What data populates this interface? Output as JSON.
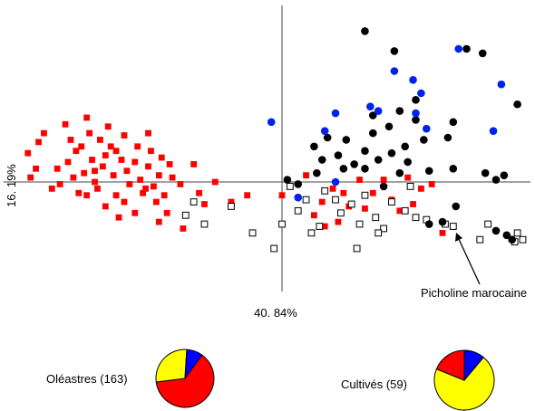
{
  "chart_data": [
    {
      "type": "scatter",
      "xlabel": "40. 84%",
      "ylabel": "16. 19%",
      "xlim": [
        -10.0,
        9.0
      ],
      "ylim": [
        -5.0,
        7.5
      ],
      "grid": false,
      "annotations": [
        {
          "text": "Picholine marocaine",
          "target": [
            6.0,
            -1.8
          ]
        }
      ],
      "series": [
        {
          "marker": "filled-square",
          "color": "#ff0000",
          "points": [
            [
              -8.9,
              2.2
            ],
            [
              -9.1,
              1.8
            ],
            [
              -9.5,
              1.3
            ],
            [
              -9.2,
              0.6
            ],
            [
              -9.4,
              0.2
            ],
            [
              -8.6,
              -0.3
            ],
            [
              -8.1,
              2.6
            ],
            [
              -7.9,
              1.9
            ],
            [
              -7.7,
              1.4
            ],
            [
              -8.0,
              0.9
            ],
            [
              -7.8,
              0.2
            ],
            [
              -8.3,
              -0.1
            ],
            [
              -7.6,
              -0.5
            ],
            [
              -7.3,
              2.9
            ],
            [
              -7.2,
              2.2
            ],
            [
              -7.5,
              1.6
            ],
            [
              -7.1,
              1.0
            ],
            [
              -7.4,
              0.4
            ],
            [
              -7.0,
              0.0
            ],
            [
              -7.3,
              -0.6
            ],
            [
              -6.8,
              1.9
            ],
            [
              -6.7,
              0.7
            ],
            [
              -6.9,
              -0.3
            ],
            [
              -6.5,
              2.5
            ],
            [
              -6.4,
              1.6
            ],
            [
              -6.6,
              1.2
            ],
            [
              -6.3,
              0.3
            ],
            [
              -6.2,
              -0.6
            ],
            [
              -6.6,
              -1.1
            ],
            [
              -5.9,
              2.1
            ],
            [
              -6.0,
              1.0
            ],
            [
              -5.8,
              0.5
            ],
            [
              -5.7,
              -0.1
            ],
            [
              -5.9,
              -0.9
            ],
            [
              -5.4,
              1.6
            ],
            [
              -5.5,
              0.9
            ],
            [
              -5.3,
              0.1
            ],
            [
              -5.2,
              -0.5
            ],
            [
              -5.5,
              -1.4
            ],
            [
              -5.0,
              2.2
            ],
            [
              -4.9,
              1.4
            ],
            [
              -5.0,
              0.7
            ],
            [
              -4.8,
              -0.2
            ],
            [
              -4.7,
              -0.9
            ],
            [
              -4.5,
              1.1
            ],
            [
              -4.6,
              0.3
            ],
            [
              -4.4,
              -0.6
            ],
            [
              -4.6,
              -1.8
            ],
            [
              -4.2,
              0.8
            ],
            [
              -4.1,
              0.2
            ],
            [
              -4.3,
              -1.4
            ],
            [
              -3.8,
              -0.1
            ],
            [
              -3.7,
              -2.1
            ],
            [
              -3.3,
              0.8
            ],
            [
              -3.1,
              -0.5
            ],
            [
              -2.9,
              -1.0
            ],
            [
              -2.5,
              0.0
            ],
            [
              -1.9,
              -0.9
            ],
            [
              -1.3,
              -0.6
            ],
            [
              0.0,
              -0.6
            ],
            [
              0.9,
              0.3
            ],
            [
              1.2,
              -1.5
            ],
            [
              1.5,
              -0.9
            ],
            [
              1.9,
              -0.3
            ],
            [
              2.1,
              -1.8
            ],
            [
              2.3,
              -0.5
            ],
            [
              2.9,
              0.1
            ],
            [
              3.1,
              -1.2
            ],
            [
              3.8,
              0.1
            ],
            [
              4.1,
              -0.8
            ],
            [
              4.4,
              -1.3
            ],
            [
              4.9,
              -1.0
            ],
            [
              5.2,
              -0.3
            ],
            [
              5.6,
              -0.1
            ],
            [
              6.0,
              -2.3
            ],
            [
              -6.1,
              -1.6
            ],
            [
              -7.0,
              0.5
            ],
            [
              -8.4,
              0.6
            ],
            [
              -6.2,
              1.4
            ],
            [
              -5.1,
              -0.3
            ],
            [
              2.5,
              -1.1
            ],
            [
              3.4,
              -0.5
            ],
            [
              1.6,
              -2.0
            ],
            [
              4.7,
              0.2
            ]
          ]
        },
        {
          "marker": "open-square",
          "color": "#000000",
          "points": [
            [
              -3.3,
              -0.9
            ],
            [
              -2.9,
              -1.9
            ],
            [
              -1.9,
              -1.1
            ],
            [
              -1.1,
              -2.3
            ],
            [
              0.0,
              -1.9
            ],
            [
              0.6,
              -1.3
            ],
            [
              0.9,
              -0.8
            ],
            [
              1.1,
              -2.3
            ],
            [
              1.6,
              -0.4
            ],
            [
              2.0,
              -0.8
            ],
            [
              2.2,
              -1.4
            ],
            [
              2.6,
              -1.0
            ],
            [
              2.9,
              -1.9
            ],
            [
              3.1,
              -0.6
            ],
            [
              3.5,
              -1.6
            ],
            [
              3.8,
              -2.1
            ],
            [
              4.1,
              -0.9
            ],
            [
              4.6,
              -1.3
            ],
            [
              5.0,
              -1.6
            ],
            [
              5.4,
              -1.7
            ],
            [
              6.1,
              -1.9
            ],
            [
              7.4,
              -2.6
            ],
            [
              8.8,
              -2.3
            ],
            [
              9.0,
              -2.6
            ],
            [
              8.7,
              -2.7
            ],
            [
              3.6,
              -2.3
            ],
            [
              4.8,
              -0.2
            ],
            [
              -0.3,
              -3.0
            ],
            [
              1.4,
              -2.0
            ],
            [
              2.8,
              -3.0
            ],
            [
              6.4,
              -2.0
            ],
            [
              7.7,
              -1.9
            ],
            [
              -3.6,
              -1.5
            ],
            [
              0.3,
              -0.2
            ]
          ]
        },
        {
          "marker": "filled-circle",
          "color": "#000000",
          "points": [
            [
              3.1,
              6.8
            ],
            [
              4.2,
              5.9
            ],
            [
              6.9,
              6.0
            ],
            [
              7.5,
              5.8
            ],
            [
              8.8,
              3.5
            ],
            [
              5.0,
              3.7
            ],
            [
              6.4,
              2.7
            ],
            [
              4.4,
              3.2
            ],
            [
              5.0,
              2.8
            ],
            [
              6.2,
              2.0
            ],
            [
              4.0,
              2.5
            ],
            [
              3.4,
              3.0
            ],
            [
              3.4,
              2.2
            ],
            [
              3.1,
              1.4
            ],
            [
              2.4,
              1.9
            ],
            [
              1.7,
              2.0
            ],
            [
              1.2,
              1.6
            ],
            [
              1.5,
              1.0
            ],
            [
              2.1,
              1.2
            ],
            [
              2.7,
              0.8
            ],
            [
              3.1,
              0.6
            ],
            [
              3.6,
              1.0
            ],
            [
              4.1,
              1.3
            ],
            [
              4.6,
              1.6
            ],
            [
              5.3,
              1.9
            ],
            [
              4.7,
              0.9
            ],
            [
              4.4,
              0.4
            ],
            [
              3.8,
              -0.2
            ],
            [
              2.3,
              0.6
            ],
            [
              1.3,
              0.4
            ],
            [
              0.6,
              -0.1
            ],
            [
              0.2,
              0.1
            ],
            [
              5.5,
              0.5
            ],
            [
              6.4,
              0.6
            ],
            [
              7.6,
              0.4
            ],
            [
              8.0,
              0.1
            ],
            [
              8.3,
              0.3
            ],
            [
              6.5,
              -1.1
            ],
            [
              8.4,
              -2.4
            ],
            [
              8.6,
              -2.6
            ],
            [
              5.5,
              -1.9
            ],
            [
              8.0,
              -2.2
            ],
            [
              6.0,
              -1.8
            ]
          ]
        },
        {
          "marker": "filled-circle",
          "color": "#0022ee",
          "points": [
            [
              6.6,
              6.0
            ],
            [
              4.2,
              5.0
            ],
            [
              4.9,
              4.6
            ],
            [
              5.2,
              4.0
            ],
            [
              5.0,
              3.1
            ],
            [
              3.3,
              3.4
            ],
            [
              3.6,
              3.2
            ],
            [
              2.0,
              3.1
            ],
            [
              1.6,
              2.3
            ],
            [
              -0.4,
              2.7
            ],
            [
              8.2,
              4.4
            ],
            [
              7.9,
              2.3
            ],
            [
              5.4,
              2.4
            ],
            [
              0.6,
              -0.7
            ],
            [
              2.0,
              0.0
            ]
          ]
        }
      ]
    },
    {
      "type": "pie",
      "title": "Oléastres (163)",
      "slices": [
        {
          "color": "#ff0000",
          "value": 0.63
        },
        {
          "color": "#ffff00",
          "value": 0.28
        },
        {
          "color": "#0000ff",
          "value": 0.09
        }
      ]
    },
    {
      "type": "pie",
      "title": "Cultivés (59)",
      "slices": [
        {
          "color": "#ffff00",
          "value": 0.7
        },
        {
          "color": "#ff0000",
          "value": 0.19
        },
        {
          "color": "#0000ff",
          "value": 0.11
        }
      ]
    }
  ]
}
